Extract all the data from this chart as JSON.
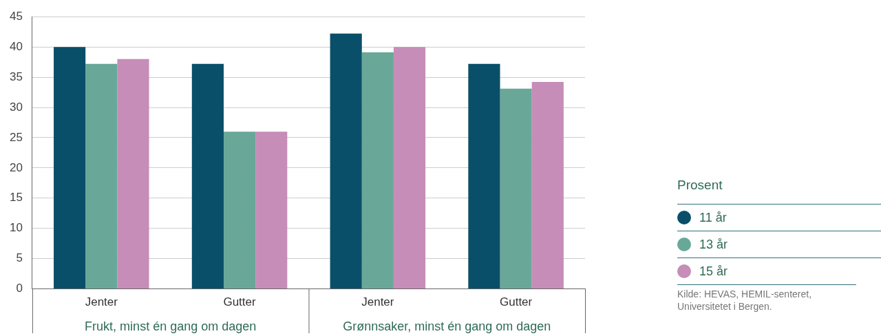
{
  "chart_data": {
    "type": "bar",
    "categories": [
      "Jenter",
      "Gutter",
      "Jenter",
      "Gutter"
    ],
    "series": [
      {
        "name": "11 år",
        "color": "#0a4f69",
        "values": [
          40,
          37.2,
          42.2,
          37.2
        ]
      },
      {
        "name": "13 år",
        "color": "#69a899",
        "values": [
          37.2,
          26,
          39.1,
          33.1
        ]
      },
      {
        "name": "15 år",
        "color": "#c68db8",
        "values": [
          38,
          26,
          40,
          34.2
        ]
      }
    ],
    "ylim": [
      0,
      45
    ],
    "yticks": [
      0,
      5,
      10,
      15,
      20,
      25,
      30,
      35,
      40,
      45
    ],
    "grid": "y",
    "legend": "right",
    "legend_title": "Prosent",
    "annotations": [
      "Frukt, minst én gang om dagen",
      "Grønnsaker, minst én gang om dagen",
      "Kilde: HEVAS, HEMIL-senteret, Universitetet i Bergen."
    ]
  }
}
